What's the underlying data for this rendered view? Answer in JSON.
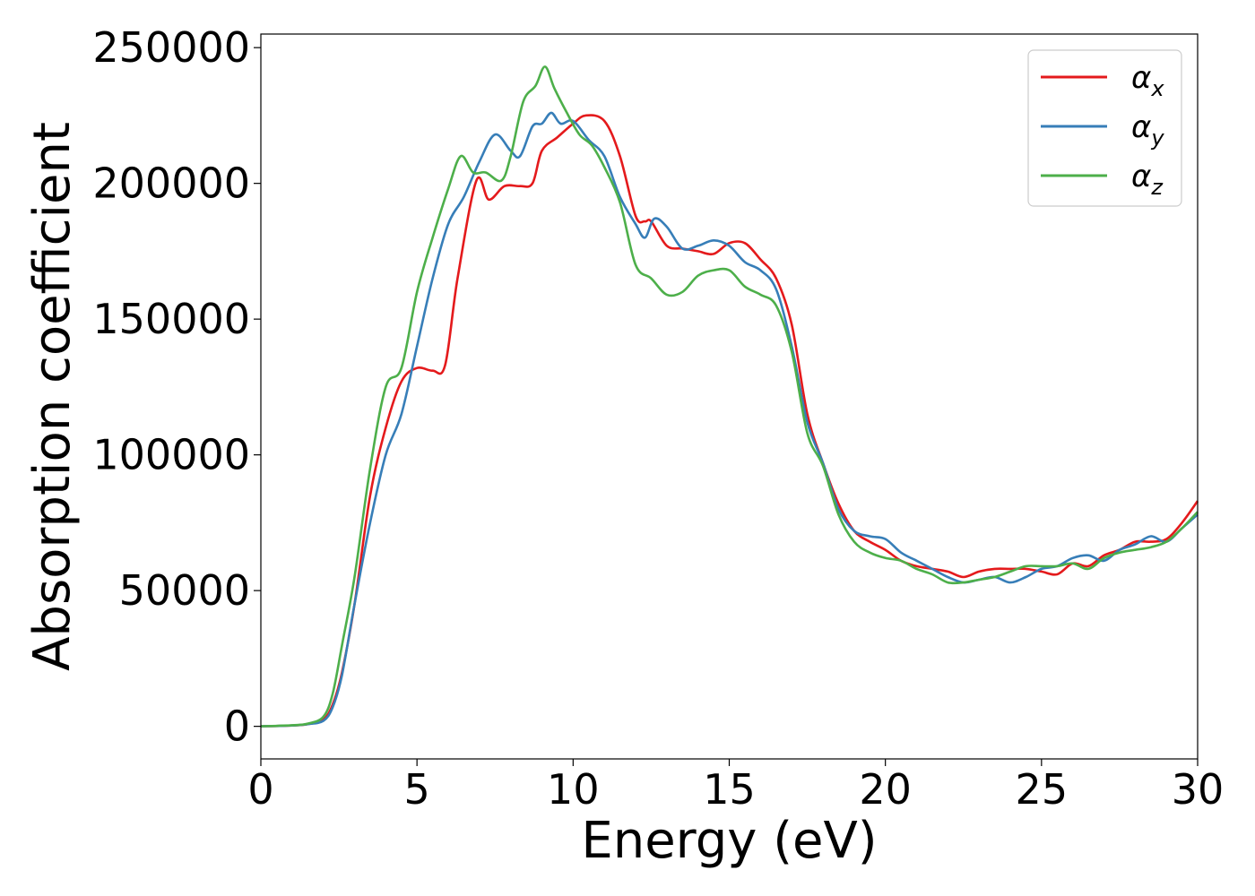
{
  "chart_data": {
    "type": "line",
    "xlabel": "Energy (eV)",
    "ylabel": "Absorption coefficient",
    "xlim": [
      0,
      30
    ],
    "ylim": [
      -12000,
      255000
    ],
    "xticks": [
      "0",
      "5",
      "10",
      "15",
      "20",
      "25",
      "30"
    ],
    "yticks": [
      "0",
      "50000",
      "100000",
      "150000",
      "200000",
      "250000"
    ],
    "grid": false,
    "legend": "top-right",
    "series": [
      {
        "name": "α",
        "sub": "x",
        "color": "#e41a1c",
        "x": [
          0,
          1,
          1.5,
          2,
          2.3,
          2.6,
          3,
          3.5,
          4,
          4.5,
          5,
          5.5,
          5.9,
          6.3,
          6.9,
          7.3,
          7.8,
          8.3,
          8.7,
          9,
          9.5,
          10,
          10.4,
          11,
          11.5,
          12,
          12.3,
          12.5,
          13,
          13.5,
          14,
          14.5,
          15,
          15.5,
          16,
          16.5,
          17,
          17.5,
          18,
          18.5,
          19,
          19.5,
          20,
          20.5,
          21,
          21.5,
          22,
          22.5,
          23,
          23.5,
          24,
          24.5,
          25,
          25.5,
          26,
          26.5,
          27,
          27.5,
          28,
          28.5,
          29,
          29.5,
          30
        ],
        "y": [
          0,
          300,
          800,
          2500,
          8000,
          20000,
          45000,
          85000,
          110000,
          127000,
          132000,
          131000,
          133000,
          165000,
          201000,
          194000,
          199000,
          199000,
          200000,
          212000,
          217000,
          222000,
          225000,
          223000,
          210000,
          188000,
          186000,
          186000,
          177000,
          176000,
          175000,
          174000,
          178000,
          178000,
          172000,
          165000,
          148000,
          115000,
          97000,
          82000,
          72000,
          68000,
          65000,
          61000,
          59000,
          58000,
          57000,
          55000,
          57000,
          58000,
          58000,
          58000,
          57000,
          56000,
          60000,
          59000,
          63000,
          65000,
          68000,
          68000,
          69000,
          75000,
          83000
        ]
      },
      {
        "name": "α",
        "sub": "y",
        "color": "#377eb8",
        "x": [
          0,
          1,
          1.5,
          2,
          2.3,
          2.6,
          3,
          3.5,
          4,
          4.5,
          5,
          5.5,
          6,
          6.5,
          7,
          7.5,
          8,
          8.3,
          8.7,
          9,
          9.3,
          9.6,
          10,
          10.5,
          11,
          11.5,
          12,
          12.3,
          12.6,
          13,
          13.5,
          14,
          14.5,
          15,
          15.5,
          16,
          16.5,
          17,
          17.5,
          18,
          18.5,
          19,
          19.5,
          20,
          20.5,
          21,
          21.5,
          22,
          22.5,
          23,
          23.5,
          24,
          24.5,
          25,
          25.5,
          26,
          26.5,
          27,
          27.5,
          28,
          28.5,
          29,
          29.5,
          30
        ],
        "y": [
          0,
          300,
          800,
          2000,
          7000,
          19000,
          45000,
          75000,
          100000,
          115000,
          140000,
          165000,
          185000,
          195000,
          208000,
          218000,
          212000,
          210000,
          221000,
          222000,
          226000,
          222000,
          223000,
          216000,
          210000,
          195000,
          185000,
          180000,
          187000,
          184000,
          176000,
          177000,
          179000,
          177000,
          171000,
          168000,
          161000,
          140000,
          112000,
          97000,
          80000,
          72000,
          70000,
          69000,
          64000,
          61000,
          58000,
          55000,
          53000,
          54000,
          55000,
          53000,
          55000,
          58000,
          59000,
          62000,
          63000,
          61000,
          65000,
          67000,
          70000,
          68000,
          73000,
          78000
        ]
      },
      {
        "name": "α",
        "sub": "z",
        "color": "#4daf4a",
        "x": [
          0,
          1,
          1.5,
          2,
          2.3,
          2.6,
          3,
          3.5,
          4,
          4.5,
          5,
          5.5,
          6,
          6.4,
          6.8,
          7.2,
          7.7,
          8,
          8.4,
          8.8,
          9.1,
          9.4,
          9.8,
          10.2,
          10.6,
          11,
          11.5,
          12,
          12.5,
          13,
          13.5,
          14,
          14.5,
          15,
          15.5,
          16,
          16.5,
          17,
          17.5,
          18,
          18.5,
          19,
          19.5,
          20,
          20.5,
          21,
          21.5,
          22,
          22.5,
          23,
          23.5,
          24,
          24.5,
          25,
          25.5,
          26,
          26.5,
          27,
          27.5,
          28,
          28.5,
          29,
          29.5,
          30
        ],
        "y": [
          0,
          400,
          1000,
          3500,
          12000,
          30000,
          55000,
          95000,
          125000,
          132000,
          160000,
          180000,
          198000,
          210000,
          204000,
          204000,
          201000,
          210000,
          230000,
          236000,
          243000,
          235000,
          226000,
          218000,
          214000,
          206000,
          193000,
          170000,
          165000,
          159000,
          160000,
          166000,
          168000,
          168000,
          162000,
          159000,
          155000,
          138000,
          108000,
          96000,
          78000,
          68000,
          64000,
          62000,
          61000,
          58000,
          56000,
          53000,
          53000,
          54000,
          55000,
          57000,
          59000,
          59000,
          59000,
          60000,
          58000,
          62000,
          64000,
          65000,
          66000,
          68000,
          73000,
          79000
        ]
      }
    ]
  }
}
